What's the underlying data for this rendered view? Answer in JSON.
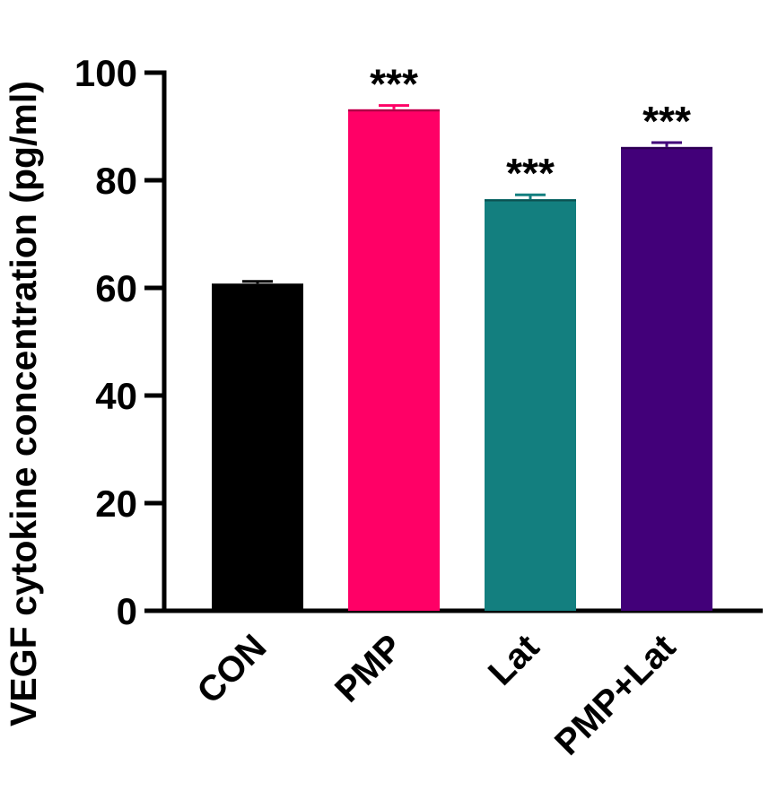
{
  "chart_data": {
    "type": "bar",
    "title": "",
    "xlabel": "",
    "ylabel": "VEGF cytokine concentration (pg/ml)",
    "ylim": [
      0,
      100
    ],
    "yticks": [
      0,
      20,
      40,
      60,
      80,
      100
    ],
    "categories": [
      "CON",
      "PMP",
      "Lat",
      "PMP+Lat"
    ],
    "values": [
      60.8,
      93.2,
      76.5,
      86.2
    ],
    "errors": [
      0.4,
      0.7,
      0.8,
      0.8
    ],
    "annotations": [
      "",
      "***",
      "***",
      "***"
    ],
    "colors": [
      "#000000",
      "#ff0066",
      "#137f7f",
      "#420079"
    ],
    "grid": false
  }
}
